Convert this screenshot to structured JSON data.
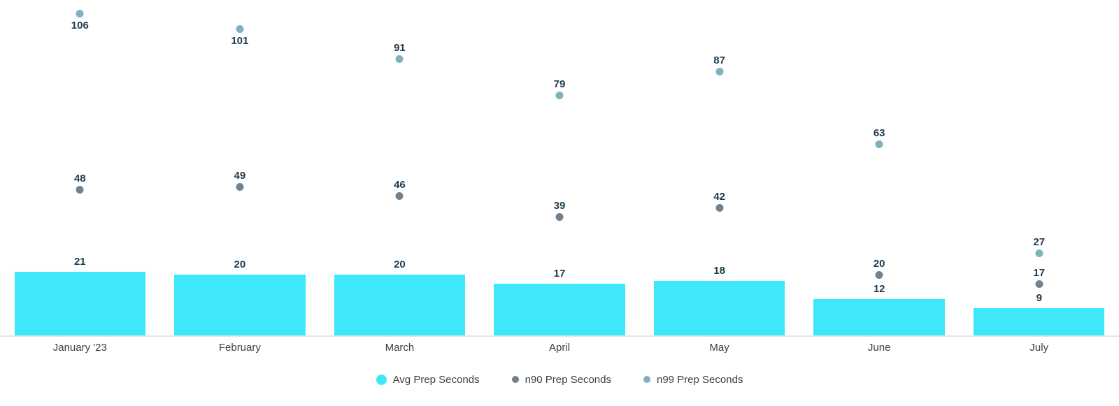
{
  "chart_data": {
    "type": "bar",
    "title": "",
    "xlabel": "",
    "ylabel": "",
    "categories": [
      "January '23",
      "February",
      "March",
      "April",
      "May",
      "June",
      "July"
    ],
    "series": [
      {
        "name": "Avg Prep Seconds",
        "type": "bar",
        "color": "#3fe7fb",
        "values": [
          21,
          20,
          20,
          17,
          18,
          12,
          9
        ]
      },
      {
        "name": "n90 Prep Seconds",
        "type": "scatter",
        "color": "#73818d",
        "values": [
          48,
          49,
          46,
          39,
          42,
          20,
          17
        ]
      },
      {
        "name": "n99 Prep Seconds",
        "type": "scatter",
        "color": "#7eb3bd",
        "values": [
          106,
          101,
          91,
          79,
          87,
          63,
          27
        ],
        "label_below_indices": [
          0,
          1
        ]
      }
    ],
    "ylim": [
      0,
      111
    ],
    "grid": false,
    "data_labels": true,
    "data_label_color": "#1e3b4e",
    "axis_line_color": "#e1e5ec",
    "legend_position": "bottom"
  }
}
